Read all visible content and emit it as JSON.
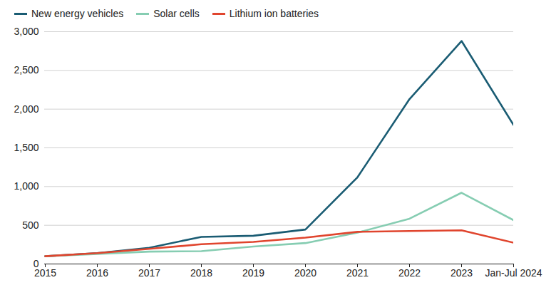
{
  "chart_data": {
    "type": "line",
    "categories": [
      "2015",
      "2016",
      "2017",
      "2018",
      "2019",
      "2020",
      "2021",
      "2022",
      "2023",
      "Jan-Jul 2024"
    ],
    "series": [
      {
        "name": "New energy vehicles",
        "color": "#1a5c73",
        "values": [
          100,
          140,
          210,
          350,
          365,
          445,
          1120,
          2130,
          2880,
          1795
        ]
      },
      {
        "name": "Solar cells",
        "color": "#86cdb2",
        "values": [
          100,
          130,
          160,
          165,
          225,
          270,
          405,
          585,
          920,
          565
        ]
      },
      {
        "name": "Lithium ion batteries",
        "color": "#e0452e",
        "values": [
          100,
          140,
          195,
          255,
          285,
          340,
          415,
          425,
          435,
          275
        ]
      }
    ],
    "ylim": [
      0,
      3000
    ],
    "yticks": [
      0,
      500,
      {
        "value": 1000,
        "label": "1,000"
      },
      {
        "value": 1500,
        "label": "1,500"
      },
      {
        "value": 2000,
        "label": "2,000"
      },
      {
        "value": 2500,
        "label": "2,500"
      },
      {
        "value": 3000,
        "label": "3,000"
      }
    ],
    "grid": true,
    "legend": "top-left"
  }
}
